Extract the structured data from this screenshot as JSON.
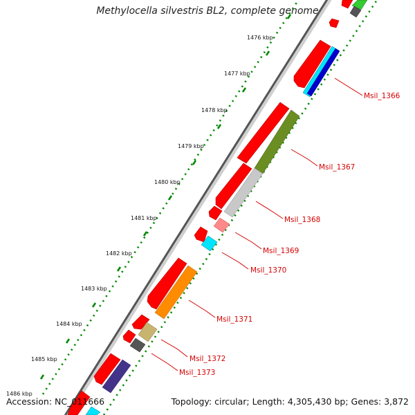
{
  "title": "Methylocella silvestris BL2, complete genome",
  "footer": {
    "accession": "Accession: NC_011666",
    "summary": "Topology: circular; Length: 4,305,430 bp; Genes: 3,872"
  },
  "ticks": [
    {
      "label": "1476 kbp"
    },
    {
      "label": "1477 kbp"
    },
    {
      "label": "1478 kbp"
    },
    {
      "label": "1479 kbp"
    },
    {
      "label": "1480 kbp"
    },
    {
      "label": "1481 kbp"
    },
    {
      "label": "1482 kbp"
    },
    {
      "label": "1483 kbp"
    },
    {
      "label": "1484 kbp"
    },
    {
      "label": "1485 kbp"
    },
    {
      "label": "1486 kbp"
    }
  ],
  "genes": [
    {
      "label": "Msil_1366"
    },
    {
      "label": "Msil_1367"
    },
    {
      "label": "Msil_1368"
    },
    {
      "label": "Msil_1369"
    },
    {
      "label": "Msil_1370"
    },
    {
      "label": "Msil_1371"
    },
    {
      "label": "Msil_1372"
    },
    {
      "label": "Msil_1373"
    }
  ],
  "colors": {
    "cds": "#ff0000",
    "backbone": "#555555",
    "tick": "#008800",
    "label": "#d40000",
    "cog_1366_a": "#00e5ff",
    "cog_1366_b": "#0000cc",
    "cog_1367": "#6b8e23",
    "cog_1368": "#c8c8c8",
    "cog_1369": "#ff8888",
    "cog_1370": "#00e5ff",
    "cog_1371": "#ff8c00",
    "cog_1372": "#c8b46e",
    "cog_1373": "#555555",
    "cog_1374": "#44338b",
    "cog_top_green": "#33cc33"
  }
}
